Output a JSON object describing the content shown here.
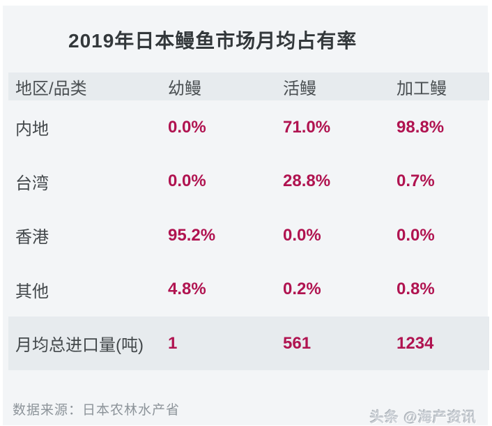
{
  "chart_data": {
    "type": "table",
    "title": "2019年日本鳗鱼市场月均占有率",
    "columns": [
      "地区/品类",
      "幼鳗",
      "活鳗",
      "加工鳗"
    ],
    "rows": [
      {
        "label": "内地",
        "values": [
          "0.0%",
          "71.0%",
          "98.8%"
        ]
      },
      {
        "label": "台湾",
        "values": [
          "0.0%",
          "28.8%",
          "0.7%"
        ]
      },
      {
        "label": "香港",
        "values": [
          "95.2%",
          "0.0%",
          "0.0%"
        ]
      },
      {
        "label": "其他",
        "values": [
          "4.8%",
          "0.2%",
          "0.8%"
        ]
      }
    ],
    "summary": {
      "label": "月均总进口量(吨)",
      "values": [
        "1",
        "561",
        "1234"
      ]
    },
    "legend_position": "none",
    "grid": false
  },
  "footer": {
    "source": "数据来源：日本农林水产省",
    "watermark": "头条 @海产资讯"
  },
  "colors": {
    "accent": "#b01350",
    "band": "#e7ebee",
    "panel_background": "#f3f5f7",
    "dark_text": "#43484b",
    "muted_text": "#8d949a"
  }
}
